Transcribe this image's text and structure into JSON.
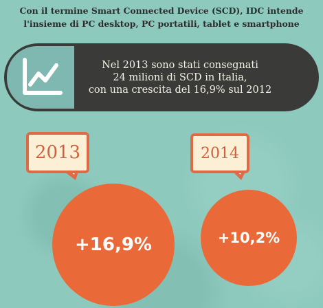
{
  "intro": {
    "line1": "Con il termine Smart Connected Device (SCD), IDC intende",
    "line2": "l'insieme di PC desktop, PC portatili, tablet e smartphone"
  },
  "banner": {
    "icon": "line-chart-icon",
    "line1": "Nel 2013 sono stati consegnati",
    "line2": "24 milioni di SCD in Italia,",
    "line3": "con una crescita del 16,9% sul 2012"
  },
  "years": [
    {
      "label": "2013",
      "growth": "+16,9%"
    },
    {
      "label": "2014",
      "growth": "+10,2%"
    }
  ],
  "colors": {
    "background": "#8ec9bd",
    "banner": "#3a3b39",
    "icon_panel": "#7fb8b1",
    "accent": "#e96a38",
    "bubble_fill": "#fbf0d6"
  }
}
